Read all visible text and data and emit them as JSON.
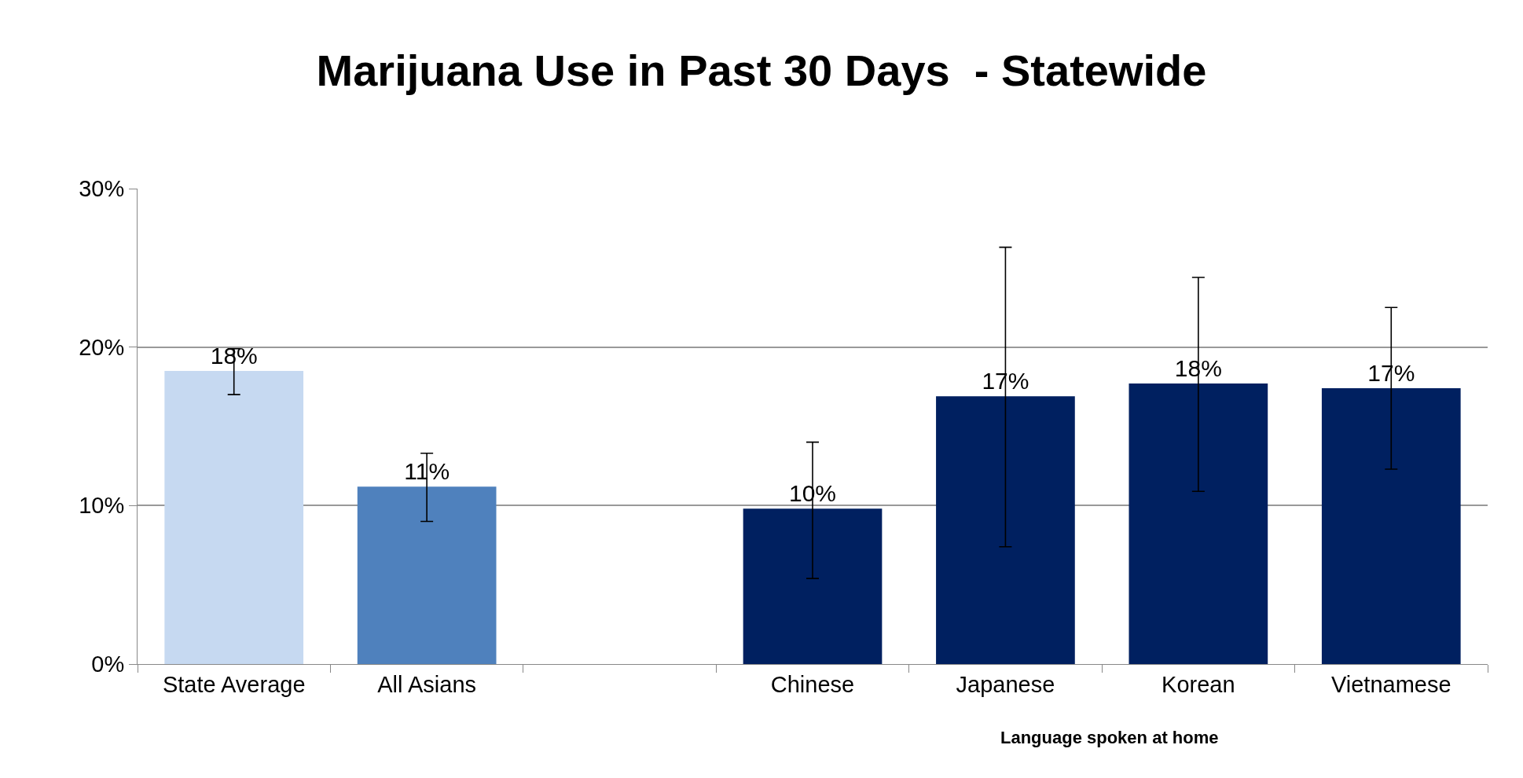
{
  "chart_data": {
    "type": "bar",
    "title": "Marijuana Use in Past 30 Days  - Statewide",
    "xlabel": "Language spoken at home",
    "categories": [
      "State Average",
      "All Asians",
      null,
      "Chinese",
      "Japanese",
      "Korean",
      "Vietnamese"
    ],
    "values": [
      18.5,
      11.2,
      null,
      9.8,
      16.9,
      17.7,
      17.4
    ],
    "colors": [
      "#c6d9f1",
      "#4f81bd",
      "#002060",
      "#002060",
      "#002060",
      "#002060",
      "#002060"
    ],
    "errors": [
      [
        17.0,
        19.9
      ],
      [
        9.0,
        13.3
      ],
      null,
      [
        5.4,
        14.0
      ],
      [
        7.4,
        26.3
      ],
      [
        10.9,
        24.4
      ],
      [
        12.3,
        22.5
      ]
    ],
    "value_labels": [
      "18%",
      "11%",
      null,
      "10%",
      "17%",
      "18%",
      "17%"
    ],
    "ylim": [
      0,
      30
    ],
    "yticks": [
      {
        "value": 0,
        "label": "0%"
      },
      {
        "value": 10,
        "label": "10%"
      },
      {
        "value": 20,
        "label": "20%"
      },
      {
        "value": 30,
        "label": "30%"
      }
    ],
    "grid": "y"
  }
}
